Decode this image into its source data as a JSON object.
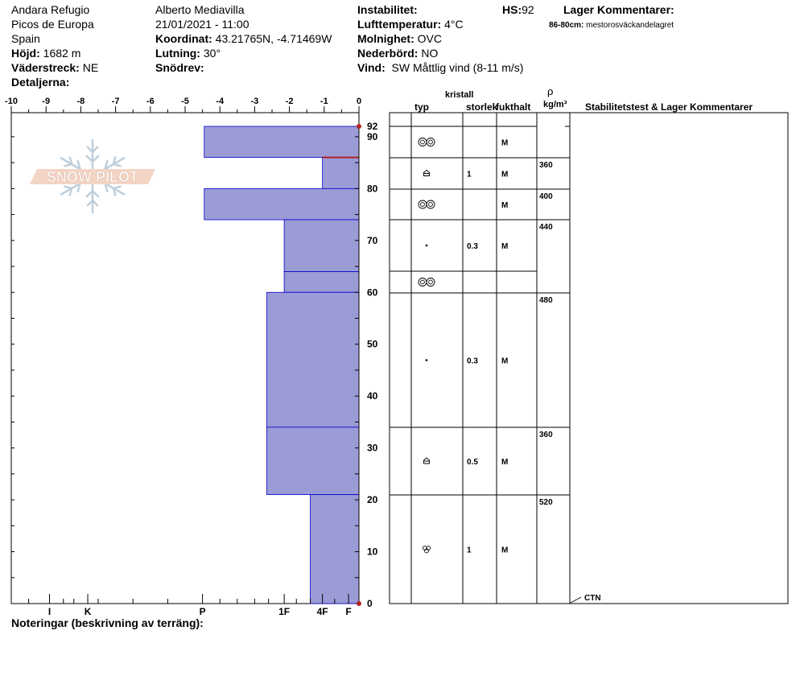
{
  "header": {
    "location": "Andara Refugio",
    "region": "Picos de Europa",
    "country": "Spain",
    "elevation_label": "Höjd:",
    "elevation_value": "1682 m",
    "aspect_label": "Väderstreck:",
    "aspect_value": "NE",
    "details_label": "Detaljerna:",
    "observer": "Alberto Mediavilla",
    "datetime": "21/01/2021 - 11:00",
    "coord_label": "Koordinat:",
    "coord_value": "43.21765N, -4.71469W",
    "slope_label": "Lutning:",
    "slope_value": "30°",
    "drift_label": "Snödrev:",
    "instability_label": "Instabilitet:",
    "air_temp_label": "Lufttemperatur:",
    "air_temp_value": "4°C",
    "cloud_label": "Molnighet:",
    "cloud_value": "OVC",
    "precip_label": "Nederbörd:",
    "precip_value": "NO",
    "wind_label": "Vind:",
    "wind_value": "SW  Måttlig vind (8-11 m/s)",
    "hs_label": "HS:",
    "hs_value": "92",
    "layer_comments_label": "Lager Kommentarer:",
    "layer_comment_range": "86-80cm:",
    "layer_comment_text": "mestorosväckandelagret"
  },
  "logo_text": "SNOW PILOT",
  "table_headers": {
    "crystal": "kristall",
    "type": "typ",
    "size": "storlek",
    "moisture": "fukthalt",
    "rho": "ρ",
    "density_unit": "kg/m³",
    "stability": "Stabilitetstest & Lager Kommentarer"
  },
  "footer": {
    "notes_label": "Noteringar (beskrivning av terräng):",
    "test_result": "CTN"
  },
  "colors": {
    "layer_fill": "#9b9bd6",
    "layer_stroke": "#0000cc",
    "marker": "#b22222"
  },
  "chart_data": {
    "type": "bar",
    "orientation": "horizontal",
    "x_ticks": [
      "-10",
      "-9",
      "-8",
      "-7",
      "-6",
      "-5",
      "-4",
      "-3",
      "-2",
      "-1",
      "0"
    ],
    "xlim": [
      -10,
      0
    ],
    "ylim": [
      0,
      92
    ],
    "y_ticks": [
      "0",
      "10",
      "20",
      "30",
      "40",
      "50",
      "60",
      "70",
      "80",
      "90",
      "92"
    ],
    "hardness_ticks": [
      {
        "label": "I",
        "x": -8.9
      },
      {
        "label": "K",
        "x": -7.8
      },
      {
        "label": "P",
        "x": -4.5
      },
      {
        "label": "1F",
        "x": -2.15
      },
      {
        "label": "4F",
        "x": -1.05
      },
      {
        "label": "F",
        "x": -0.3
      }
    ],
    "layers": [
      {
        "top": 92,
        "bottom": 86,
        "hardness": -4.45,
        "grain": "rounded-faceted",
        "size": "",
        "moisture": "M",
        "density": ""
      },
      {
        "top": 86,
        "bottom": 80,
        "hardness": -1.05,
        "grain": "depth-hoar",
        "size": "1",
        "moisture": "M",
        "density": "360"
      },
      {
        "top": 80,
        "bottom": 74,
        "hardness": -4.45,
        "grain": "rounded-faceted",
        "size": "",
        "moisture": "M",
        "density": "400"
      },
      {
        "top": 74,
        "bottom": 64,
        "hardness": -2.15,
        "grain": "rounded",
        "size": "0.3",
        "moisture": "M",
        "density": "440"
      },
      {
        "top": 64,
        "bottom": 60,
        "hardness": -2.15,
        "grain": "rounded-faceted",
        "size": "",
        "moisture": "",
        "density": ""
      },
      {
        "top": 60,
        "bottom": 34,
        "hardness": -2.65,
        "grain": "rounded",
        "size": "0.3",
        "moisture": "M",
        "density": "480"
      },
      {
        "top": 34,
        "bottom": 21,
        "hardness": -2.65,
        "grain": "depth-hoar",
        "size": "0.5",
        "moisture": "M",
        "density": "360"
      },
      {
        "top": 21,
        "bottom": 0,
        "hardness": -1.4,
        "grain": "melt-forms",
        "size": "1",
        "moisture": "M",
        "density": "520"
      }
    ],
    "marked_interface": 86,
    "surface_marker": 92
  }
}
